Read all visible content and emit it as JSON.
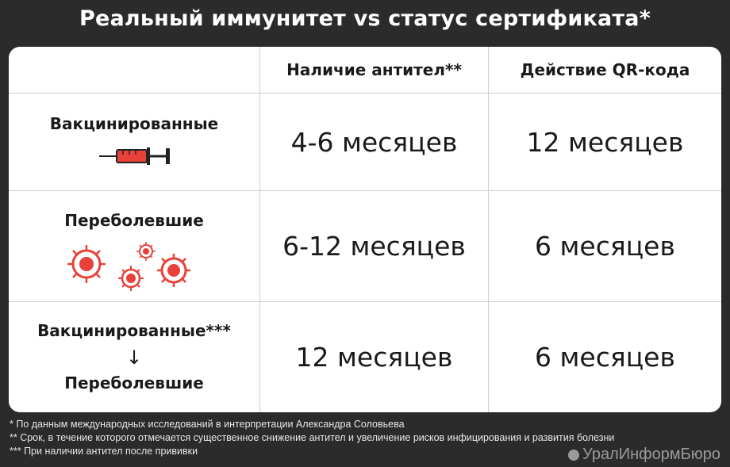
{
  "title": "Реальный иммунитет vs статус сертификата*",
  "table": {
    "headers": [
      "",
      "Наличие антител**",
      "Действие QR-кода"
    ],
    "rows": [
      {
        "label": "Вакцинированные",
        "antibodies": "4-6 месяцев",
        "qr": "12 месяцев",
        "icon": "syringe-icon"
      },
      {
        "label": "Переболевшие",
        "antibodies": "6-12 месяцев",
        "qr": "6 месяцев",
        "icon": "virus-icon"
      },
      {
        "label_top": "Вакцинированные***",
        "arrow": "↓",
        "label_bottom": "Переболевшие",
        "antibodies": "12 месяцев",
        "qr": "6 месяцев"
      }
    ]
  },
  "chart_data": {
    "type": "table",
    "columns": [
      "",
      "Наличие антител**",
      "Действие QR-кода"
    ],
    "rows": [
      [
        "Вакцинированные",
        "4-6 месяцев",
        "12 месяцев"
      ],
      [
        "Переболевшие",
        "6-12 месяцев",
        "6 месяцев"
      ],
      [
        "Вакцинированные*** ↓ Переболевшие",
        "12 месяцев",
        "6 месяцев"
      ]
    ]
  },
  "footnotes": [
    "* По данным международных исследований в интерпретации Александра Соловьева",
    "** Срок, в течение которого отмечается существенное снижение антител и увеличение рисков инфицирования и развития болезни",
    "*** При наличии антител после прививки"
  ],
  "brand": "УралИнформБюро",
  "colors": {
    "background": "#2b2b2b",
    "card": "#ffffff",
    "accent": "#e8413a"
  }
}
